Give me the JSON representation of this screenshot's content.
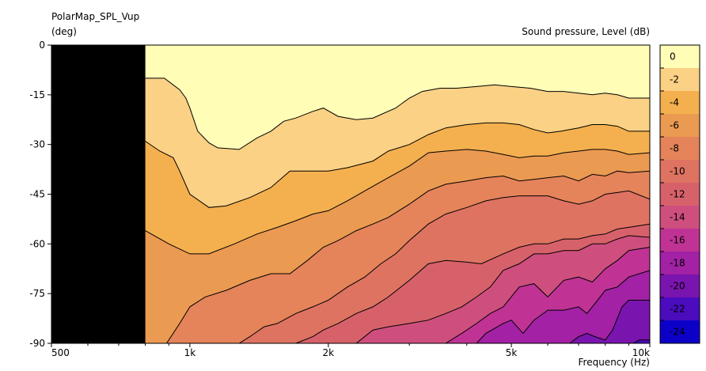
{
  "chart_data": {
    "type": "heatmap",
    "subtype": "filled-contour",
    "title": "PolarMap_SPL_Vup",
    "ylabel": "(deg)",
    "xlabel": "Frequency  (Hz)",
    "colorbar_label": "Sound pressure, Level  (dB)",
    "x_scale": "log",
    "xlim": [
      500,
      10000
    ],
    "ylim": [
      -90,
      0
    ],
    "x_ticks": [
      {
        "value": 500,
        "label": "500"
      },
      {
        "value": 1000,
        "label": "1k"
      },
      {
        "value": 2000,
        "label": "2k"
      },
      {
        "value": 5000,
        "label": "5k"
      },
      {
        "value": 10000,
        "label": "10k"
      }
    ],
    "y_ticks": [
      {
        "value": 0,
        "label": "0"
      },
      {
        "value": -15,
        "label": "-15"
      },
      {
        "value": -30,
        "label": "-30"
      },
      {
        "value": -45,
        "label": "-45"
      },
      {
        "value": -60,
        "label": "-60"
      },
      {
        "value": -75,
        "label": "-75"
      },
      {
        "value": -90,
        "label": "-90"
      }
    ],
    "no_data_below_hz": 800,
    "no_data_color": "#000000",
    "levels": [
      {
        "label": "0",
        "color": "#fffdb6"
      },
      {
        "label": "-2",
        "color": "#fad185"
      },
      {
        "label": "-4",
        "color": "#f4b04e"
      },
      {
        "label": "-6",
        "color": "#eb9a52"
      },
      {
        "label": "-8",
        "color": "#e5835a"
      },
      {
        "label": "-10",
        "color": "#de7362"
      },
      {
        "label": "-12",
        "color": "#d7616a"
      },
      {
        "label": "-14",
        "color": "#ce4f7e"
      },
      {
        "label": "-16",
        "color": "#c03395"
      },
      {
        "label": "-18",
        "color": "#a221a4"
      },
      {
        "label": "-20",
        "color": "#7a14af"
      },
      {
        "label": "-22",
        "color": "#4a0cbd"
      },
      {
        "label": "-24",
        "color": "#0c00c8"
      }
    ],
    "contours": [
      {
        "level": -1,
        "points": [
          [
            800,
            -10
          ],
          [
            880,
            -10
          ],
          [
            950,
            -13.5
          ],
          [
            980,
            -16
          ],
          [
            1000,
            -19
          ],
          [
            1040,
            -26
          ],
          [
            1100,
            -29.5
          ],
          [
            1150,
            -31
          ],
          [
            1280,
            -31.5
          ],
          [
            1400,
            -28
          ],
          [
            1500,
            -26
          ],
          [
            1600,
            -23
          ],
          [
            1700,
            -22
          ],
          [
            1850,
            -20
          ],
          [
            1950,
            -19
          ],
          [
            2100,
            -21.5
          ],
          [
            2300,
            -22.5
          ],
          [
            2500,
            -22
          ],
          [
            2800,
            -19
          ],
          [
            3000,
            -16
          ],
          [
            3200,
            -14
          ],
          [
            3500,
            -13
          ],
          [
            3800,
            -13
          ],
          [
            4200,
            -12.5
          ],
          [
            4600,
            -12
          ],
          [
            5000,
            -12.5
          ],
          [
            5500,
            -13
          ],
          [
            6000,
            -14
          ],
          [
            6500,
            -14
          ],
          [
            7000,
            -14.5
          ],
          [
            7500,
            -15
          ],
          [
            8000,
            -14.5
          ],
          [
            8500,
            -15
          ],
          [
            9000,
            -16
          ],
          [
            10000,
            -16
          ]
        ]
      },
      {
        "level": -3,
        "points": [
          [
            800,
            -29
          ],
          [
            860,
            -32
          ],
          [
            920,
            -34
          ],
          [
            950,
            -38
          ],
          [
            1000,
            -45
          ],
          [
            1100,
            -49
          ],
          [
            1200,
            -48.5
          ],
          [
            1350,
            -46
          ],
          [
            1500,
            -43
          ],
          [
            1650,
            -38
          ],
          [
            1800,
            -38
          ],
          [
            2000,
            -38
          ],
          [
            2200,
            -37
          ],
          [
            2500,
            -35
          ],
          [
            2700,
            -32
          ],
          [
            3000,
            -30
          ],
          [
            3300,
            -27
          ],
          [
            3600,
            -25
          ],
          [
            4000,
            -24
          ],
          [
            4400,
            -23.5
          ],
          [
            4800,
            -23.5
          ],
          [
            5200,
            -24
          ],
          [
            5600,
            -25.5
          ],
          [
            6000,
            -26.5
          ],
          [
            6400,
            -26
          ],
          [
            7000,
            -25
          ],
          [
            7500,
            -24
          ],
          [
            8000,
            -24
          ],
          [
            8500,
            -24.5
          ],
          [
            9000,
            -26
          ],
          [
            10000,
            -26
          ]
        ]
      },
      {
        "level": -5,
        "points": [
          [
            800,
            -56
          ],
          [
            900,
            -60
          ],
          [
            1000,
            -63
          ],
          [
            1100,
            -63
          ],
          [
            1250,
            -60
          ],
          [
            1400,
            -57
          ],
          [
            1550,
            -55
          ],
          [
            1700,
            -53
          ],
          [
            1850,
            -51
          ],
          [
            2000,
            -50
          ],
          [
            2200,
            -47
          ],
          [
            2400,
            -44
          ],
          [
            2700,
            -40
          ],
          [
            3000,
            -36.5
          ],
          [
            3300,
            -32.5
          ],
          [
            3600,
            -32
          ],
          [
            4000,
            -31.5
          ],
          [
            4400,
            -32
          ],
          [
            4800,
            -33
          ],
          [
            5200,
            -34
          ],
          [
            5600,
            -33.5
          ],
          [
            6000,
            -33.5
          ],
          [
            6500,
            -32.5
          ],
          [
            7000,
            -32
          ],
          [
            7500,
            -31.5
          ],
          [
            8000,
            -31.5
          ],
          [
            8500,
            -32
          ],
          [
            9000,
            -33
          ],
          [
            10000,
            -32.5
          ]
        ]
      },
      {
        "level": -7,
        "points": [
          [
            800,
            -90
          ],
          [
            890,
            -90
          ],
          [
            950,
            -84
          ],
          [
            1000,
            -79
          ],
          [
            1080,
            -76
          ],
          [
            1200,
            -74
          ],
          [
            1350,
            -71
          ],
          [
            1500,
            -69
          ],
          [
            1650,
            -69
          ],
          [
            1800,
            -65
          ],
          [
            1950,
            -61
          ],
          [
            2100,
            -59
          ],
          [
            2300,
            -56
          ],
          [
            2500,
            -54
          ],
          [
            2700,
            -52
          ],
          [
            3000,
            -48
          ],
          [
            3300,
            -44
          ],
          [
            3600,
            -42
          ],
          [
            4000,
            -41
          ],
          [
            4400,
            -40
          ],
          [
            4800,
            -39.5
          ],
          [
            5200,
            -41
          ],
          [
            5600,
            -40.5
          ],
          [
            6000,
            -40
          ],
          [
            6500,
            -39.5
          ],
          [
            7000,
            -41
          ],
          [
            7500,
            -39
          ],
          [
            8000,
            -39.5
          ],
          [
            8500,
            -38
          ],
          [
            9000,
            -38.5
          ],
          [
            10000,
            -38
          ]
        ]
      },
      {
        "level": -9,
        "points": [
          [
            1280,
            -90
          ],
          [
            1350,
            -88
          ],
          [
            1450,
            -85
          ],
          [
            1550,
            -84
          ],
          [
            1700,
            -81
          ],
          [
            1850,
            -79
          ],
          [
            2000,
            -77
          ],
          [
            2200,
            -73
          ],
          [
            2400,
            -70
          ],
          [
            2600,
            -66
          ],
          [
            2800,
            -63
          ],
          [
            3000,
            -59
          ],
          [
            3300,
            -54
          ],
          [
            3600,
            -51
          ],
          [
            4000,
            -49
          ],
          [
            4400,
            -47
          ],
          [
            4800,
            -46
          ],
          [
            5200,
            -45.5
          ],
          [
            5600,
            -45.5
          ],
          [
            6000,
            -45.5
          ],
          [
            6500,
            -47
          ],
          [
            7000,
            -48
          ],
          [
            7500,
            -47
          ],
          [
            8000,
            -45
          ],
          [
            8500,
            -44.5
          ],
          [
            9000,
            -44
          ],
          [
            10000,
            -46.5
          ]
        ]
      },
      {
        "level": -11,
        "points": [
          [
            1700,
            -90
          ],
          [
            1850,
            -88
          ],
          [
            1950,
            -86
          ],
          [
            2100,
            -84
          ],
          [
            2300,
            -81
          ],
          [
            2500,
            -79
          ],
          [
            2700,
            -76
          ],
          [
            3000,
            -71
          ],
          [
            3300,
            -66
          ],
          [
            3600,
            -65
          ],
          [
            4000,
            -65.5
          ],
          [
            4300,
            -66
          ],
          [
            4800,
            -63
          ],
          [
            5200,
            -61
          ],
          [
            5600,
            -60
          ],
          [
            6000,
            -60
          ],
          [
            6500,
            -58.5
          ],
          [
            7000,
            -58.5
          ],
          [
            7500,
            -57.5
          ],
          [
            8000,
            -57
          ],
          [
            8500,
            -55.5
          ],
          [
            9000,
            -55
          ],
          [
            10000,
            -54
          ]
        ]
      },
      {
        "level": -13,
        "points": [
          [
            2300,
            -90
          ],
          [
            2500,
            -86
          ],
          [
            2700,
            -85
          ],
          [
            3000,
            -84
          ],
          [
            3300,
            -83
          ],
          [
            3600,
            -81
          ],
          [
            3900,
            -79
          ],
          [
            4200,
            -76
          ],
          [
            4500,
            -73
          ],
          [
            4800,
            -68
          ],
          [
            5200,
            -66
          ],
          [
            5600,
            -63
          ],
          [
            6000,
            -63
          ],
          [
            6500,
            -62
          ],
          [
            7000,
            -62
          ],
          [
            7500,
            -60
          ],
          [
            8000,
            -60
          ],
          [
            8500,
            -58.5
          ],
          [
            9000,
            -57.5
          ],
          [
            10000,
            -58
          ]
        ]
      },
      {
        "level": -15,
        "points": [
          [
            3600,
            -90
          ],
          [
            3900,
            -87
          ],
          [
            4200,
            -84
          ],
          [
            4500,
            -81
          ],
          [
            4800,
            -79
          ],
          [
            5200,
            -73
          ],
          [
            5600,
            -72
          ],
          [
            6000,
            -76
          ],
          [
            6500,
            -71
          ],
          [
            7000,
            -70
          ],
          [
            7500,
            -71.5
          ],
          [
            8000,
            -67.5
          ],
          [
            8500,
            -65
          ],
          [
            9000,
            -62
          ],
          [
            10000,
            -61
          ]
        ]
      },
      {
        "level": -17,
        "points": [
          [
            4200,
            -90
          ],
          [
            4400,
            -87
          ],
          [
            4600,
            -85.5
          ],
          [
            4800,
            -84
          ],
          [
            5000,
            -83
          ],
          [
            5300,
            -87
          ],
          [
            5600,
            -83
          ],
          [
            6000,
            -80
          ],
          [
            6500,
            -80
          ],
          [
            7000,
            -79
          ],
          [
            7300,
            -81
          ],
          [
            7600,
            -78
          ],
          [
            8000,
            -74
          ],
          [
            8500,
            -73
          ],
          [
            9000,
            -70
          ],
          [
            10000,
            -68
          ]
        ]
      },
      {
        "level": -19,
        "points": [
          [
            6700,
            -90
          ],
          [
            7000,
            -88
          ],
          [
            7300,
            -87
          ],
          [
            7600,
            -88
          ],
          [
            8000,
            -89
          ],
          [
            8300,
            -86
          ],
          [
            8700,
            -79
          ],
          [
            9000,
            -77
          ],
          [
            10000,
            -77
          ]
        ]
      },
      {
        "level": -21,
        "points": [
          [
            9200,
            -90
          ],
          [
            9500,
            -89
          ],
          [
            10000,
            -89
          ]
        ]
      }
    ]
  }
}
